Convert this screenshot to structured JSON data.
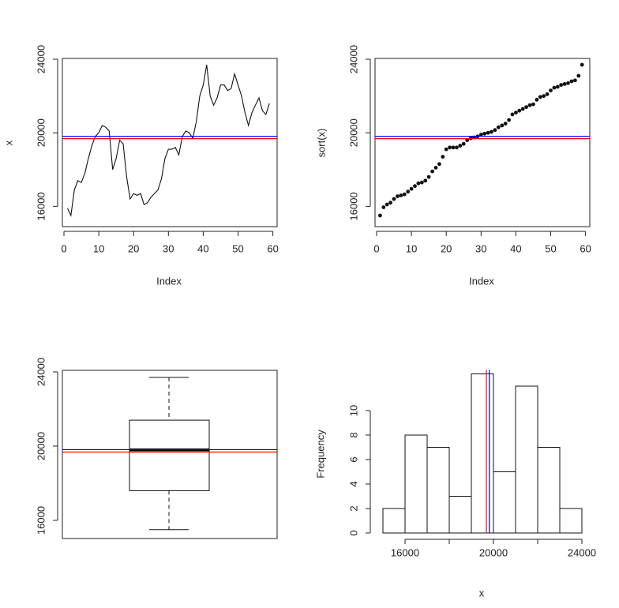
{
  "chart_data": [
    {
      "type": "line",
      "xlabel": "Index",
      "ylabel": "x",
      "xlim": [
        0,
        61
      ],
      "ylim": [
        15200,
        24000
      ],
      "xticks": [
        0,
        10,
        20,
        30,
        40,
        50,
        60
      ],
      "yticks": [
        16000,
        20000,
        24000
      ],
      "y": [
        15900,
        15500,
        16900,
        17400,
        17300,
        17800,
        18600,
        19300,
        19800,
        20000,
        20400,
        20300,
        20100,
        18000,
        18600,
        19600,
        19400,
        17600,
        16400,
        16700,
        16600,
        16700,
        16100,
        16200,
        16500,
        16700,
        16900,
        17500,
        18600,
        19100,
        19100,
        19200,
        18800,
        19800,
        20100,
        20000,
        19700,
        20600,
        22000,
        22600,
        23700,
        22000,
        21500,
        21900,
        22600,
        22600,
        22300,
        22400,
        23200,
        22600,
        22000,
        21100,
        20400,
        21100,
        21500,
        21900,
        21200,
        21000,
        21600
      ],
      "hlines": [
        {
          "value": 19812,
          "color": "#0000ff"
        },
        {
          "value": 19680,
          "color": "#ff0000"
        }
      ]
    },
    {
      "type": "scatter",
      "xlabel": "Index",
      "ylabel": "sort(x)",
      "xlim": [
        0,
        61
      ],
      "ylim": [
        15200,
        24000
      ],
      "xticks": [
        0,
        10,
        20,
        30,
        40,
        50,
        60
      ],
      "yticks": [
        16000,
        20000,
        24000
      ],
      "y": [
        15500,
        15950,
        16100,
        16200,
        16400,
        16550,
        16600,
        16650,
        16800,
        16950,
        17100,
        17250,
        17300,
        17400,
        17600,
        17900,
        18100,
        18300,
        18700,
        19100,
        19200,
        19200,
        19200,
        19300,
        19400,
        19600,
        19700,
        19750,
        19800,
        19900,
        19950,
        20000,
        20050,
        20150,
        20300,
        20400,
        20500,
        20700,
        21000,
        21100,
        21200,
        21300,
        21400,
        21500,
        21550,
        21800,
        21950,
        22000,
        22100,
        22300,
        22450,
        22500,
        22600,
        22650,
        22700,
        22800,
        22850,
        23100,
        23700
      ],
      "hlines": [
        {
          "value": 19812,
          "color": "#0000ff"
        },
        {
          "value": 19680,
          "color": "#ff0000"
        }
      ]
    },
    {
      "type": "box",
      "ylim": [
        15000,
        24000
      ],
      "yticks": [
        16000,
        20000,
        24000
      ],
      "whisker_low": 15500,
      "q1": 17600,
      "median": 19800,
      "q3": 21400,
      "whisker_high": 23700,
      "hlines": [
        {
          "value": 19812,
          "color": "#0000ff"
        },
        {
          "value": 19680,
          "color": "#ff0000"
        }
      ]
    },
    {
      "type": "bar",
      "xlabel": "x",
      "ylabel": "Frequency",
      "xlim": [
        15000,
        24000
      ],
      "ylim": [
        0,
        13
      ],
      "xticks": [
        16000,
        20000,
        24000
      ],
      "xminorticks": [
        18000,
        22000
      ],
      "yticks": [
        0,
        2,
        4,
        6,
        8,
        10
      ],
      "bins": [
        15000,
        16000,
        17000,
        18000,
        19000,
        20000,
        21000,
        22000,
        23000,
        24000
      ],
      "counts": [
        2,
        8,
        7,
        3,
        13,
        5,
        12,
        7,
        2
      ],
      "vlines": [
        {
          "value": 19680,
          "color": "#ff0000"
        },
        {
          "value": 19812,
          "color": "#0000ff"
        }
      ]
    }
  ]
}
